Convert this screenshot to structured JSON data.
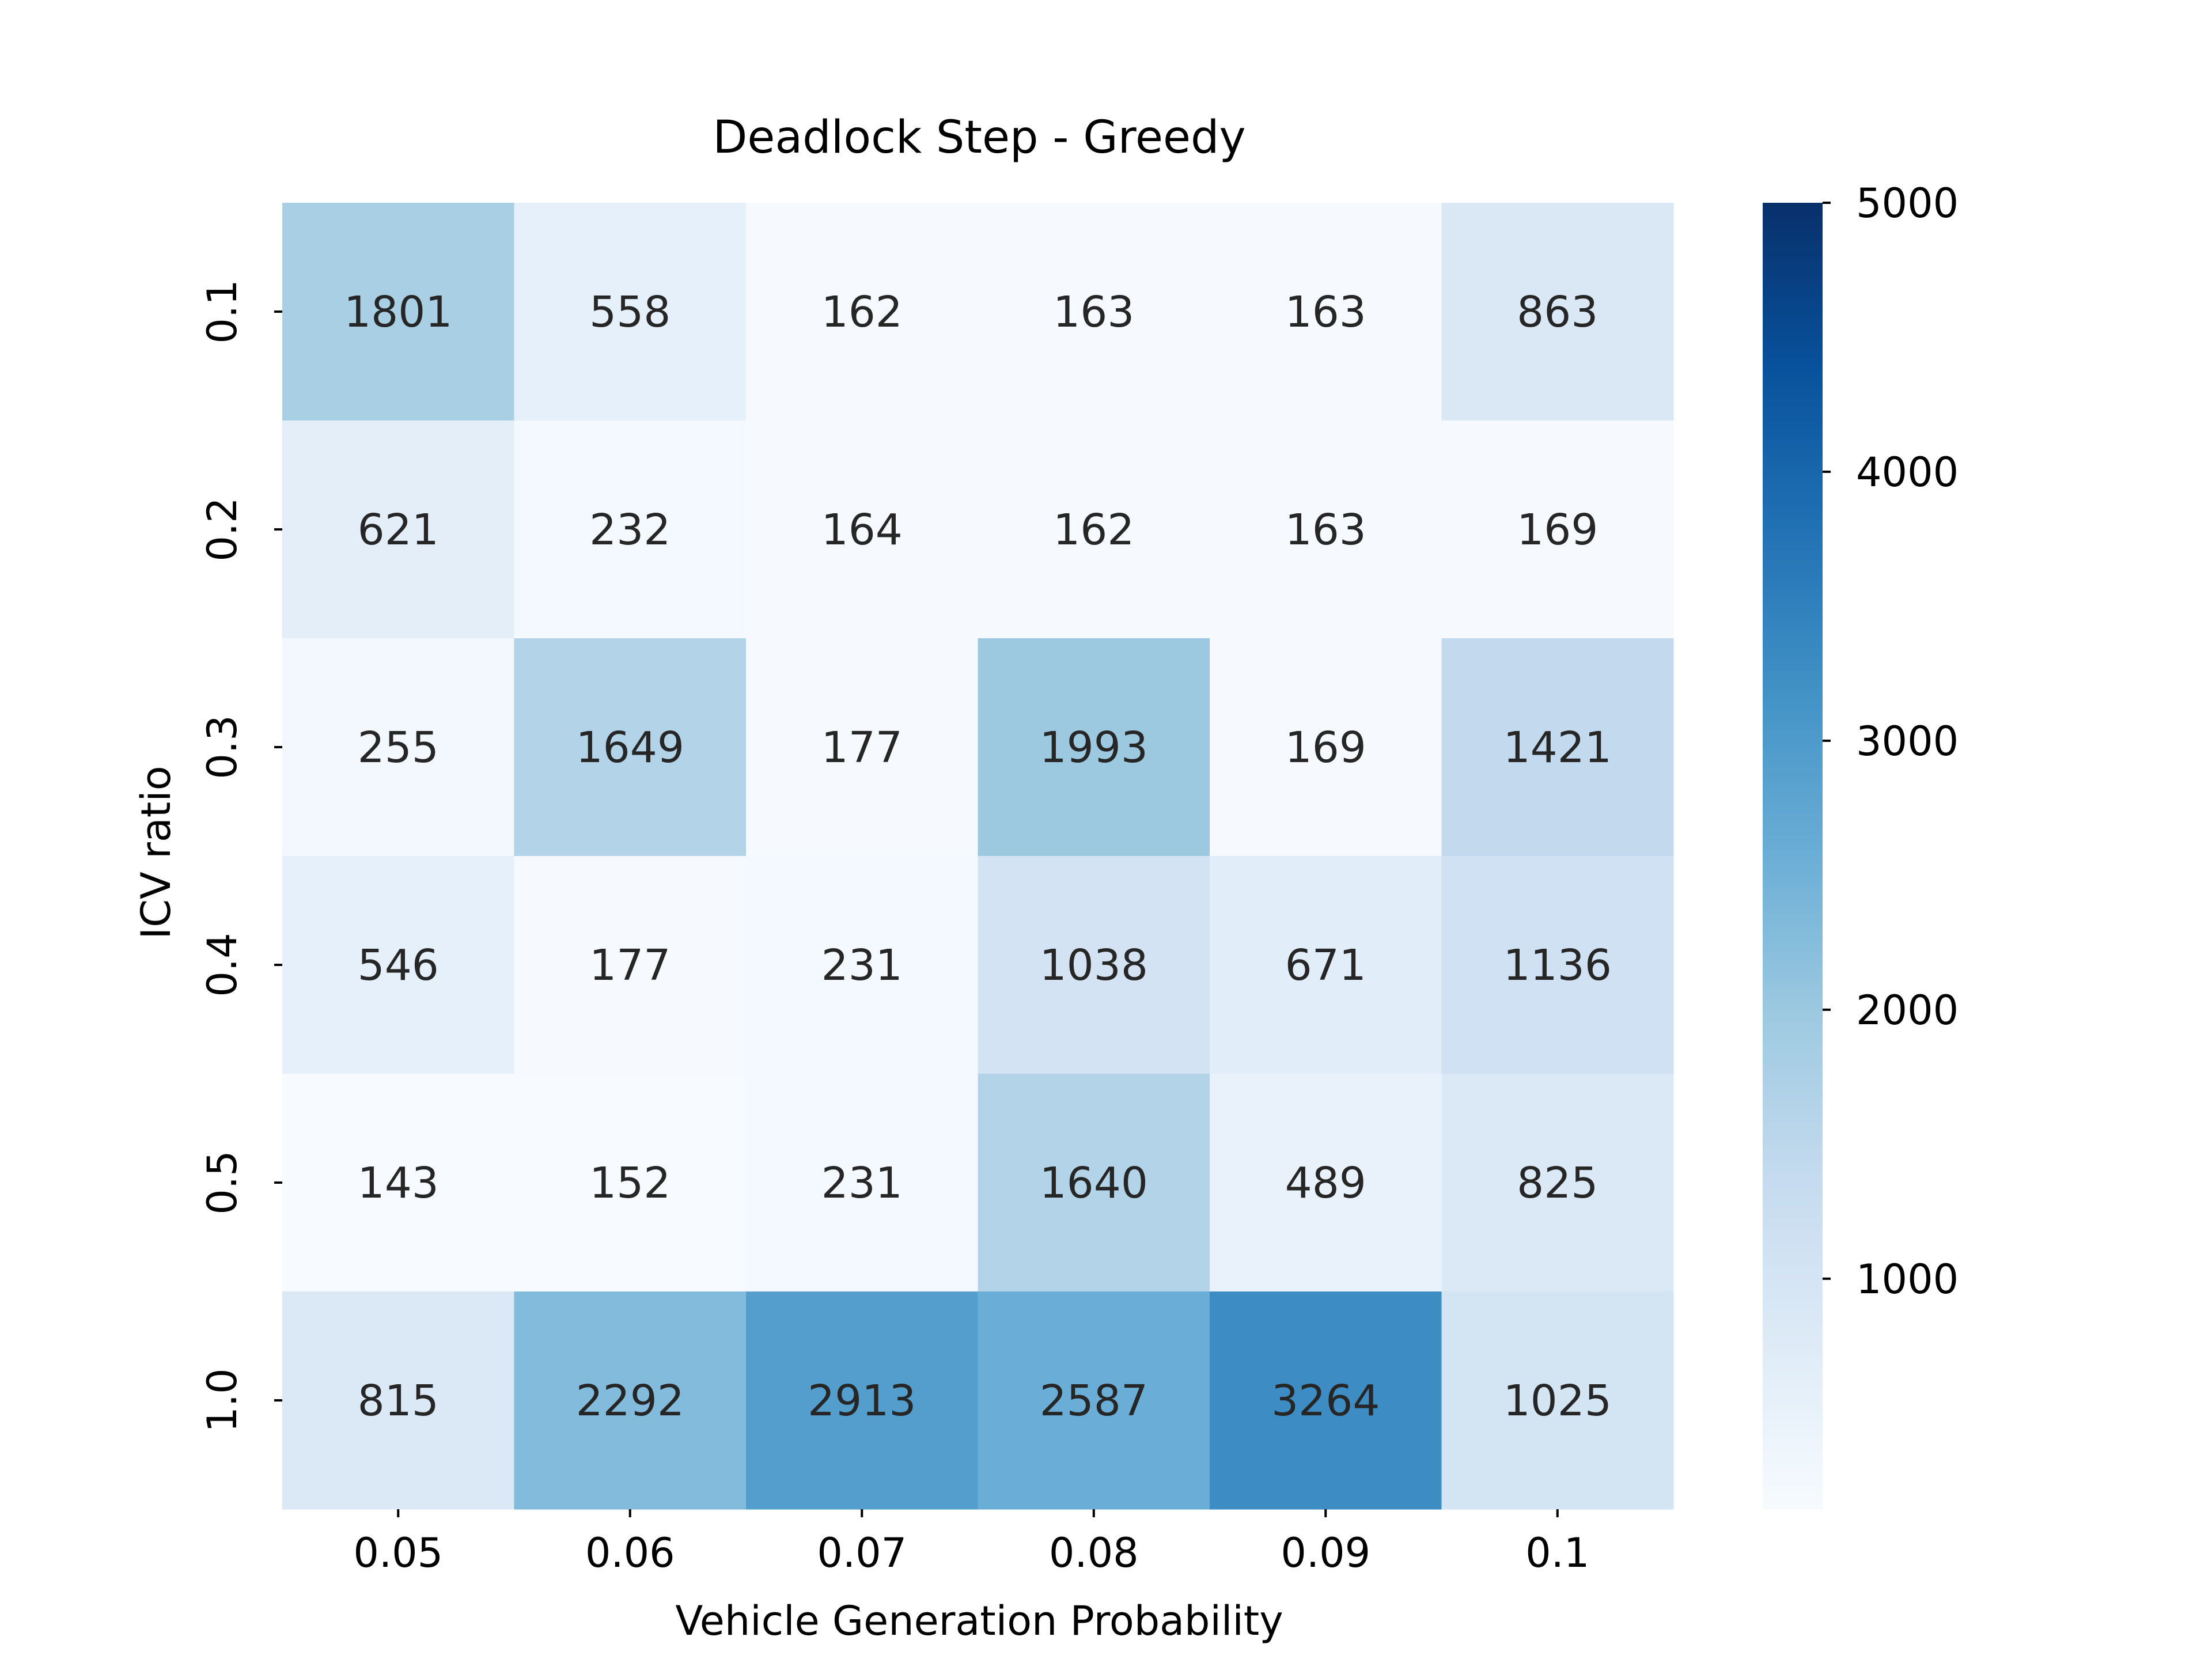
{
  "chart_data": {
    "type": "heatmap",
    "title": "Deadlock Step - Greedy",
    "xlabel": "Vehicle Generation Probability",
    "ylabel": "ICV ratio",
    "x_categories": [
      "0.05",
      "0.06",
      "0.07",
      "0.08",
      "0.09",
      "0.1"
    ],
    "y_categories": [
      "0.1",
      "0.2",
      "0.3",
      "0.4",
      "0.5",
      "1.0"
    ],
    "values": [
      [
        1801,
        558,
        162,
        163,
        163,
        863
      ],
      [
        621,
        232,
        164,
        162,
        163,
        169
      ],
      [
        255,
        1649,
        177,
        1993,
        169,
        1421
      ],
      [
        546,
        177,
        231,
        1038,
        671,
        1136
      ],
      [
        143,
        152,
        231,
        1640,
        489,
        825
      ],
      [
        815,
        2292,
        2913,
        2587,
        3264,
        1025
      ]
    ],
    "colorbar": {
      "colormap": "Blues",
      "range": [
        143,
        5000
      ],
      "ticks": [
        1000,
        2000,
        3000,
        4000,
        5000
      ],
      "tick_labels": [
        "1000",
        "2000",
        "3000",
        "4000",
        "5000"
      ]
    },
    "colors": {
      "text_dark": "#262626",
      "text_light": "#ffffff",
      "axis": "#000000"
    }
  }
}
